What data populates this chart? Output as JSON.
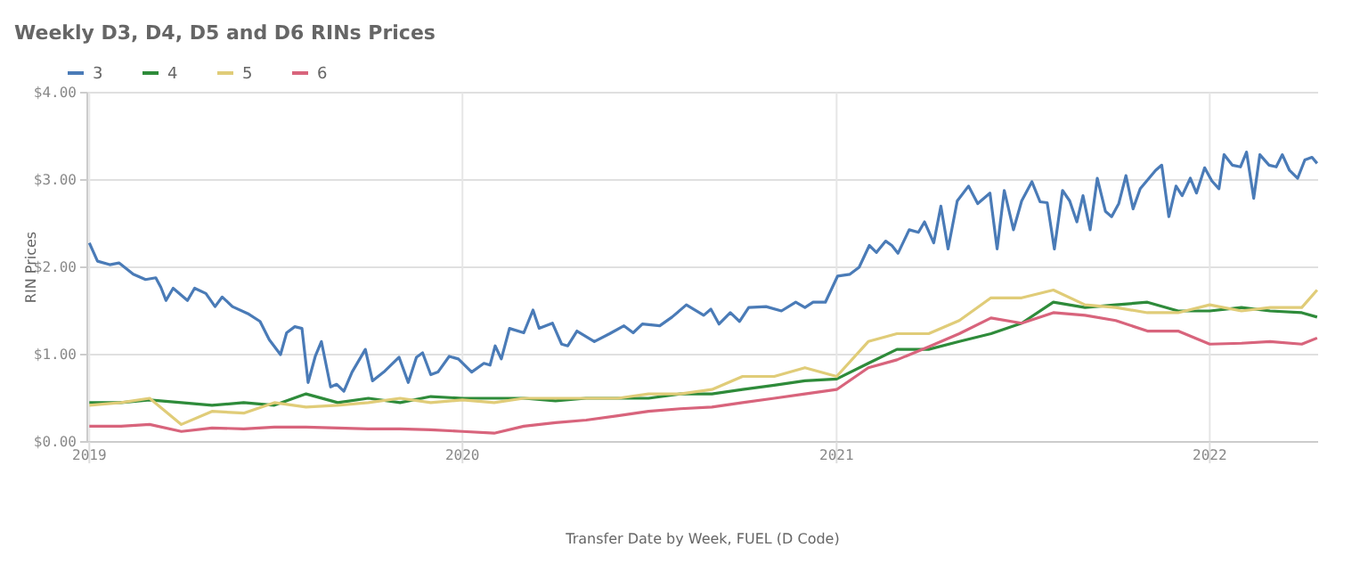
{
  "chart_data": {
    "type": "line",
    "title": "Weekly D3, D4, D5 and D6 RINs Prices",
    "xlabel": "Transfer Date by Week, FUEL (D Code)",
    "ylabel": "RIN Prices",
    "x": [
      "2019-01-01",
      "2019-02-01",
      "2019-03-01",
      "2019-04-01",
      "2019-05-01",
      "2019-06-01",
      "2019-07-01",
      "2019-08-01",
      "2019-09-01",
      "2019-10-01",
      "2019-11-01",
      "2019-12-01",
      "2020-01-01",
      "2020-02-01",
      "2020-03-01",
      "2020-04-01",
      "2020-05-01",
      "2020-06-01",
      "2020-07-01",
      "2020-08-01",
      "2020-09-01",
      "2020-10-01",
      "2020-11-01",
      "2020-12-01",
      "2021-01-01",
      "2021-02-01",
      "2021-03-01",
      "2021-04-01",
      "2021-05-01",
      "2021-06-01",
      "2021-07-01",
      "2021-08-01",
      "2021-09-01",
      "2021-10-01",
      "2021-11-01",
      "2021-12-01",
      "2022-01-01",
      "2022-02-01",
      "2022-03-01",
      "2022-04-01",
      "2022-04-16"
    ],
    "series": [
      {
        "name": "3",
        "color": "#4a7bb7",
        "x": [
          "2019-01-01",
          "2019-01-09",
          "2019-01-21",
          "2019-01-30",
          "2019-02-13",
          "2019-02-25",
          "2019-03-07",
          "2019-03-12",
          "2019-03-17",
          "2019-03-24",
          "2019-04-07",
          "2019-04-14",
          "2019-04-25",
          "2019-05-04",
          "2019-05-11",
          "2019-05-21",
          "2019-06-05",
          "2019-06-17",
          "2019-06-26",
          "2019-07-07",
          "2019-07-13",
          "2019-07-21",
          "2019-07-28",
          "2019-08-03",
          "2019-08-10",
          "2019-08-16",
          "2019-08-25",
          "2019-08-31",
          "2019-09-07",
          "2019-09-15",
          "2019-09-28",
          "2019-10-05",
          "2019-10-16",
          "2019-10-31",
          "2019-11-09",
          "2019-11-17",
          "2019-11-23",
          "2019-12-01",
          "2019-12-08",
          "2019-12-19",
          "2019-12-28",
          "2020-01-10",
          "2020-01-22",
          "2020-01-28",
          "2020-02-02",
          "2020-02-08",
          "2020-02-16",
          "2020-03-01",
          "2020-03-10",
          "2020-03-16",
          "2020-03-29",
          "2020-04-07",
          "2020-04-13",
          "2020-04-22",
          "2020-05-09",
          "2020-05-24",
          "2020-06-07",
          "2020-06-16",
          "2020-06-25",
          "2020-07-12",
          "2020-07-24",
          "2020-08-07",
          "2020-08-24",
          "2020-08-31",
          "2020-09-08",
          "2020-09-19",
          "2020-09-28",
          "2020-10-07",
          "2020-10-24",
          "2020-11-08",
          "2020-11-22",
          "2020-12-01",
          "2020-12-09",
          "2020-12-21",
          "2021-01-02",
          "2021-01-14",
          "2021-01-23",
          "2021-02-02",
          "2021-02-09",
          "2021-02-18",
          "2021-02-24",
          "2021-03-02",
          "2021-03-13",
          "2021-03-22",
          "2021-03-28",
          "2021-04-06",
          "2021-04-13",
          "2021-04-20",
          "2021-04-29",
          "2021-05-10",
          "2021-05-19",
          "2021-05-31",
          "2021-06-07",
          "2021-06-14",
          "2021-06-23",
          "2021-07-01",
          "2021-07-11",
          "2021-07-19",
          "2021-07-26",
          "2021-08-02",
          "2021-08-10",
          "2021-08-17",
          "2021-08-24",
          "2021-08-30",
          "2021-09-06",
          "2021-09-13",
          "2021-09-21",
          "2021-09-27",
          "2021-10-04",
          "2021-10-11",
          "2021-10-18",
          "2021-10-25",
          "2021-11-09",
          "2021-11-15",
          "2021-11-22",
          "2021-11-29",
          "2021-12-05",
          "2021-12-13",
          "2021-12-19",
          "2021-12-27",
          "2022-01-03",
          "2022-01-10",
          "2022-01-15",
          "2022-01-23",
          "2022-01-31",
          "2022-02-06",
          "2022-02-13",
          "2022-02-19",
          "2022-02-28",
          "2022-03-07",
          "2022-03-13",
          "2022-03-20",
          "2022-03-28",
          "2022-04-04",
          "2022-04-11",
          "2022-04-16"
        ],
        "values": [
          2.28,
          2.07,
          2.03,
          2.05,
          1.92,
          1.86,
          1.88,
          1.77,
          1.62,
          1.76,
          1.62,
          1.76,
          1.7,
          1.55,
          1.66,
          1.55,
          1.47,
          1.38,
          1.17,
          1.0,
          1.25,
          1.32,
          1.3,
          0.68,
          0.98,
          1.15,
          0.63,
          0.66,
          0.58,
          0.8,
          1.06,
          0.7,
          0.8,
          0.97,
          0.68,
          0.97,
          1.02,
          0.77,
          0.8,
          0.98,
          0.95,
          0.8,
          0.9,
          0.88,
          1.1,
          0.95,
          1.3,
          1.25,
          1.51,
          1.3,
          1.36,
          1.12,
          1.1,
          1.27,
          1.15,
          1.24,
          1.33,
          1.25,
          1.35,
          1.33,
          1.43,
          1.57,
          1.45,
          1.52,
          1.35,
          1.48,
          1.38,
          1.54,
          1.55,
          1.5,
          1.6,
          1.54,
          1.6,
          1.6,
          1.9,
          1.92,
          2.0,
          2.25,
          2.17,
          2.3,
          2.25,
          2.16,
          2.43,
          2.4,
          2.52,
          2.28,
          2.7,
          2.21,
          2.76,
          2.93,
          2.73,
          2.85,
          2.21,
          2.88,
          2.43,
          2.76,
          2.98,
          2.75,
          2.74,
          2.21,
          2.88,
          2.76,
          2.52,
          2.82,
          2.43,
          3.02,
          2.64,
          2.58,
          2.73,
          3.05,
          2.67,
          2.9,
          3.11,
          3.17,
          2.58,
          2.93,
          2.82,
          3.02,
          2.85,
          3.14,
          2.99,
          2.9,
          3.29,
          3.17,
          3.15,
          3.32,
          2.79,
          3.29,
          3.17,
          3.15,
          3.29,
          3.11,
          3.02,
          3.23,
          3.26,
          3.19
        ]
      },
      {
        "name": "4",
        "color": "#2e8b3a",
        "values": [
          0.45,
          0.45,
          0.48,
          0.45,
          0.42,
          0.45,
          0.42,
          0.55,
          0.45,
          0.5,
          0.45,
          0.52,
          0.5,
          0.5,
          0.5,
          0.47,
          0.5,
          0.5,
          0.5,
          0.55,
          0.55,
          0.6,
          0.65,
          0.7,
          0.72,
          0.9,
          1.06,
          1.06,
          1.15,
          1.24,
          1.36,
          1.6,
          1.54,
          1.57,
          1.6,
          1.5,
          1.5,
          1.54,
          1.5,
          1.48,
          1.43
        ]
      },
      {
        "name": "5",
        "color": "#e0cc78",
        "values": [
          0.42,
          0.45,
          0.5,
          0.2,
          0.35,
          0.33,
          0.45,
          0.4,
          0.42,
          0.45,
          0.5,
          0.45,
          0.48,
          0.45,
          0.5,
          0.5,
          0.5,
          0.5,
          0.55,
          0.55,
          0.6,
          0.75,
          0.75,
          0.85,
          0.75,
          1.15,
          1.24,
          1.24,
          1.39,
          1.65,
          1.65,
          1.74,
          1.57,
          1.54,
          1.48,
          1.48,
          1.57,
          1.5,
          1.54,
          1.54,
          1.74
        ]
      },
      {
        "name": "6",
        "color": "#d8647c",
        "values": [
          0.18,
          0.18,
          0.2,
          0.12,
          0.16,
          0.15,
          0.17,
          0.17,
          0.16,
          0.15,
          0.15,
          0.14,
          0.12,
          0.1,
          0.18,
          0.22,
          0.25,
          0.3,
          0.35,
          0.38,
          0.4,
          0.45,
          0.5,
          0.55,
          0.6,
          0.85,
          0.94,
          1.09,
          1.24,
          1.42,
          1.36,
          1.48,
          1.45,
          1.39,
          1.27,
          1.27,
          1.12,
          1.13,
          1.15,
          1.12,
          1.19
        ]
      }
    ],
    "xlim": [
      "2018-12-30",
      "2022-04-17"
    ],
    "xticks": [
      {
        "value": "2019-01-01",
        "label": "2019"
      },
      {
        "value": "2020-01-01",
        "label": "2020"
      },
      {
        "value": "2021-01-01",
        "label": "2021"
      },
      {
        "value": "2022-01-01",
        "label": "2022"
      }
    ],
    "ylim": [
      0,
      4
    ],
    "yticks": [
      {
        "value": 0,
        "label": "$0.00"
      },
      {
        "value": 1,
        "label": "$1.00"
      },
      {
        "value": 2,
        "label": "$2.00"
      },
      {
        "value": 3,
        "label": "$3.00"
      },
      {
        "value": 4,
        "label": "$4.00"
      }
    ],
    "grid": true,
    "legend": "top left",
    "marker": "none",
    "line_style": "solid"
  }
}
